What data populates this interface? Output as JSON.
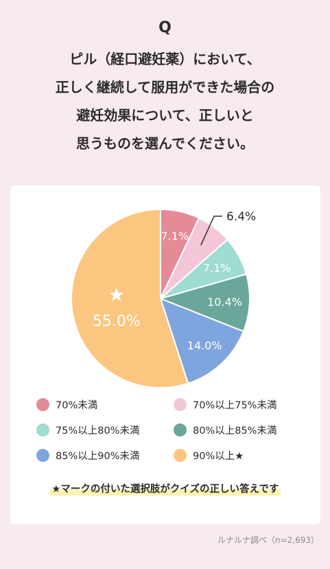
{
  "question": {
    "mark": "Q",
    "lines": [
      "ピル（経口避妊薬）において、",
      "正しく継続して服用ができた場合の",
      "避妊効果について、正しいと",
      "思うものを選んでください。"
    ]
  },
  "chart_data": {
    "type": "pie",
    "title": "",
    "slices": [
      {
        "name": "70%未満",
        "value": 7.1,
        "label": "7.1%",
        "color": "#e58a97",
        "label_color": "#ffffff"
      },
      {
        "name": "70%以上75%未満",
        "value": 6.4,
        "label": "6.4%",
        "color": "#f4c7d8",
        "label_color": "#2b2b2b"
      },
      {
        "name": "75%以上80%未満",
        "value": 7.1,
        "label": "7.1%",
        "color": "#9fdcd2",
        "label_color": "#ffffff"
      },
      {
        "name": "80%以上85%未満",
        "value": 10.4,
        "label": "10.4%",
        "color": "#6aa79a",
        "label_color": "#ffffff"
      },
      {
        "name": "85%以上90%未満",
        "value": 14.0,
        "label": "14.0%",
        "color": "#7fa5de",
        "label_color": "#ffffff"
      },
      {
        "name": "90%以上★",
        "value": 55.0,
        "label": "55.0%",
        "color": "#fbc67f",
        "label_color": "#ffffff",
        "marker": "★"
      }
    ],
    "legend_position": "bottom"
  },
  "note": "★マークの付いた選択肢がクイズの正しい答えです",
  "source": "ルナルナ調べ（n=2,693）"
}
